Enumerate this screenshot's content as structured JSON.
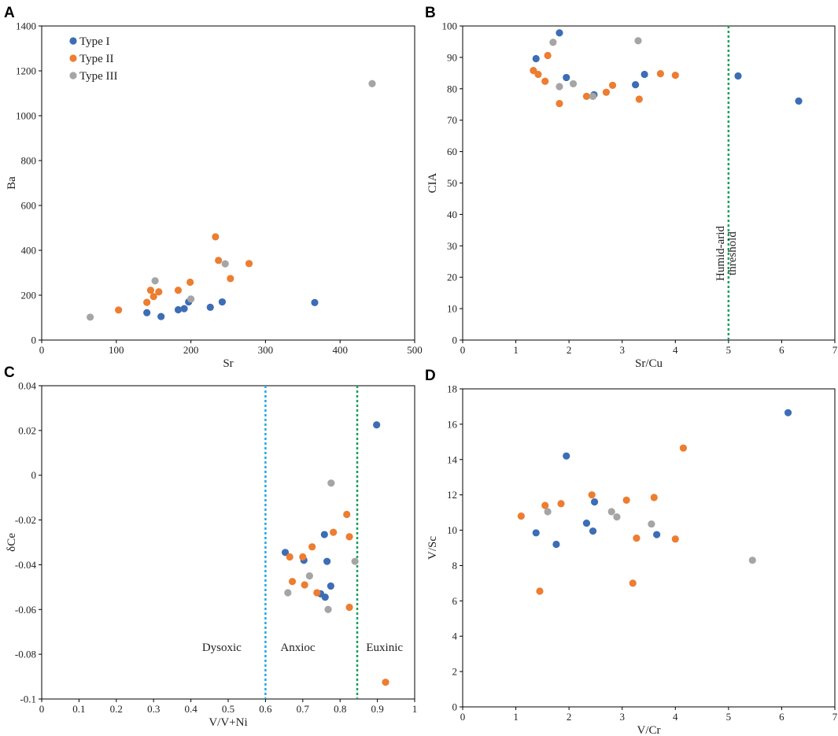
{
  "colors": {
    "type_i": "#3d6db5",
    "type_ii": "#ed7d31",
    "type_iii": "#a5a5a5",
    "threshold_green": "#1aa05a",
    "threshold_blue": "#20a8e6"
  },
  "chart_data": [
    {
      "panel": "A",
      "type": "scatter",
      "xlabel": "Sr",
      "ylabel": "Ba",
      "xlim": [
        0,
        500
      ],
      "ylim": [
        0,
        1400
      ],
      "xticks": [
        0,
        100,
        200,
        300,
        400,
        500
      ],
      "yticks": [
        0,
        200,
        400,
        600,
        800,
        1000,
        1200,
        1400
      ],
      "legend": {
        "position": "top-left",
        "entries": [
          "Type I",
          "Type II",
          "Type III"
        ]
      },
      "series": [
        {
          "name": "Type I",
          "color": "#3d6db5",
          "points": [
            [
              141,
              122
            ],
            [
              160,
              105
            ],
            [
              183,
              135
            ],
            [
              191,
              140
            ],
            [
              197,
              170
            ],
            [
              226,
              146
            ],
            [
              242,
              170
            ],
            [
              366,
              167
            ]
          ]
        },
        {
          "name": "Type II",
          "color": "#ed7d31",
          "points": [
            [
              103,
              134
            ],
            [
              141,
              168
            ],
            [
              146,
              222
            ],
            [
              150,
              194
            ],
            [
              157,
              215
            ],
            [
              183,
              222
            ],
            [
              199,
              258
            ],
            [
              233,
              460
            ],
            [
              237,
              355
            ],
            [
              253,
              274
            ],
            [
              278,
              341
            ]
          ]
        },
        {
          "name": "Type III",
          "color": "#a5a5a5",
          "points": [
            [
              65,
              102
            ],
            [
              152,
              264
            ],
            [
              200,
              183
            ],
            [
              246,
              340
            ],
            [
              443,
              1143
            ]
          ]
        }
      ],
      "annotations": []
    },
    {
      "panel": "B",
      "type": "scatter",
      "xlabel": "Sr/Cu",
      "ylabel": "CIA",
      "xlim": [
        0,
        7
      ],
      "ylim": [
        0,
        100
      ],
      "xticks": [
        0,
        1,
        2,
        3,
        4,
        5,
        6,
        7
      ],
      "yticks": [
        0,
        10,
        20,
        30,
        40,
        50,
        60,
        70,
        80,
        90,
        100
      ],
      "series": [
        {
          "name": "Type I",
          "color": "#3d6db5",
          "points": [
            [
              1.38,
              89.6
            ],
            [
              1.82,
              97.8
            ],
            [
              1.95,
              83.6
            ],
            [
              2.47,
              78.1
            ],
            [
              3.25,
              81.3
            ],
            [
              3.42,
              84.6
            ],
            [
              5.18,
              84.1
            ],
            [
              6.32,
              76.1
            ]
          ]
        },
        {
          "name": "Type II",
          "color": "#ed7d31",
          "points": [
            [
              1.33,
              85.8
            ],
            [
              1.42,
              84.6
            ],
            [
              1.55,
              82.4
            ],
            [
              1.6,
              90.6
            ],
            [
              1.82,
              75.3
            ],
            [
              2.33,
              77.6
            ],
            [
              2.7,
              78.9
            ],
            [
              2.82,
              81.1
            ],
            [
              3.32,
              76.7
            ],
            [
              3.72,
              84.8
            ],
            [
              4.0,
              84.3
            ]
          ]
        },
        {
          "name": "Type III",
          "color": "#a5a5a5",
          "points": [
            [
              1.7,
              94.8
            ],
            [
              1.82,
              80.7
            ],
            [
              2.08,
              81.6
            ],
            [
              2.45,
              77.6
            ],
            [
              3.3,
              95.3
            ]
          ]
        }
      ],
      "annotations": [
        {
          "kind": "vline",
          "x": 5,
          "color": "#1aa05a",
          "label": [
            "Humid-arid",
            "threshold"
          ]
        }
      ]
    },
    {
      "panel": "C",
      "type": "scatter",
      "xlabel": "V/V+Ni",
      "ylabel": "δCe",
      "xlim": [
        0,
        1
      ],
      "ylim": [
        -0.1,
        0.04
      ],
      "xticks": [
        0,
        0.1,
        0.2,
        0.3,
        0.4,
        0.5,
        0.6,
        0.7,
        0.8,
        0.9,
        1
      ],
      "xticklabels": [
        "0",
        "0.1",
        "0.2",
        "0.3",
        "0.4",
        "0.5",
        "0.6",
        "0.7",
        "0.8",
        "0.9",
        "1"
      ],
      "yticks": [
        -0.1,
        -0.08,
        -0.06,
        -0.04,
        -0.02,
        0,
        0.02,
        0.04
      ],
      "yticklabels": [
        "-0.1",
        "-0.08",
        "-0.06",
        "-0.04",
        "-0.02",
        "0",
        "0.02",
        "0.04"
      ],
      "series": [
        {
          "name": "Type I",
          "color": "#3d6db5",
          "points": [
            [
              0.653,
              -0.0345
            ],
            [
              0.703,
              -0.038
            ],
            [
              0.758,
              -0.0265
            ],
            [
              0.765,
              -0.0385
            ],
            [
              0.775,
              -0.0495
            ],
            [
              0.748,
              -0.053
            ],
            [
              0.76,
              -0.0545
            ],
            [
              0.898,
              0.0225
            ]
          ]
        },
        {
          "name": "Type II",
          "color": "#ed7d31",
          "points": [
            [
              0.665,
              -0.0365
            ],
            [
              0.672,
              -0.0475
            ],
            [
              0.7,
              -0.0365
            ],
            [
              0.705,
              -0.049
            ],
            [
              0.725,
              -0.032
            ],
            [
              0.738,
              -0.0525
            ],
            [
              0.782,
              -0.0255
            ],
            [
              0.818,
              -0.0175
            ],
            [
              0.825,
              -0.0275
            ],
            [
              0.825,
              -0.059
            ],
            [
              0.922,
              -0.0925
            ]
          ]
        },
        {
          "name": "Type III",
          "color": "#a5a5a5",
          "points": [
            [
              0.66,
              -0.0525
            ],
            [
              0.718,
              -0.045
            ],
            [
              0.768,
              -0.06
            ],
            [
              0.776,
              -0.0035
            ],
            [
              0.84,
              -0.0385
            ]
          ]
        }
      ],
      "annotations": [
        {
          "kind": "vline",
          "x": 0.6,
          "color": "#20a8e6"
        },
        {
          "kind": "vline",
          "x": 0.846,
          "color": "#1aa05a"
        },
        {
          "kind": "text",
          "x": 0.43,
          "y": -0.0785,
          "label": "Dysoxic"
        },
        {
          "kind": "text",
          "x": 0.64,
          "y": -0.0785,
          "label": "Anxioc"
        },
        {
          "kind": "text",
          "x": 0.87,
          "y": -0.0785,
          "label": "Euxinic"
        }
      ]
    },
    {
      "panel": "D",
      "type": "scatter",
      "xlabel": "V/Cr",
      "ylabel": "V/Sc",
      "xlim": [
        0,
        7
      ],
      "ylim": [
        0,
        18
      ],
      "xticks": [
        0,
        1,
        2,
        3,
        4,
        5,
        6,
        7
      ],
      "yticks": [
        0,
        2,
        4,
        6,
        8,
        10,
        12,
        14,
        16,
        18
      ],
      "series": [
        {
          "name": "Type I",
          "color": "#3d6db5",
          "points": [
            [
              1.38,
              9.85
            ],
            [
              1.76,
              9.2
            ],
            [
              1.95,
              14.2
            ],
            [
              2.33,
              10.4
            ],
            [
              2.45,
              9.95
            ],
            [
              2.48,
              11.6
            ],
            [
              3.65,
              9.75
            ],
            [
              6.12,
              16.65
            ]
          ]
        },
        {
          "name": "Type II",
          "color": "#ed7d31",
          "points": [
            [
              1.1,
              10.8
            ],
            [
              1.45,
              6.55
            ],
            [
              1.55,
              11.4
            ],
            [
              1.85,
              11.5
            ],
            [
              2.43,
              12.0
            ],
            [
              3.08,
              11.7
            ],
            [
              3.2,
              7.0
            ],
            [
              3.27,
              9.55
            ],
            [
              3.6,
              11.85
            ],
            [
              4.0,
              9.5
            ],
            [
              4.15,
              14.65
            ]
          ]
        },
        {
          "name": "Type III",
          "color": "#a5a5a5",
          "points": [
            [
              1.6,
              11.05
            ],
            [
              2.8,
              11.05
            ],
            [
              2.9,
              10.75
            ],
            [
              3.55,
              10.35
            ],
            [
              5.45,
              8.3
            ]
          ]
        }
      ],
      "annotations": []
    }
  ]
}
